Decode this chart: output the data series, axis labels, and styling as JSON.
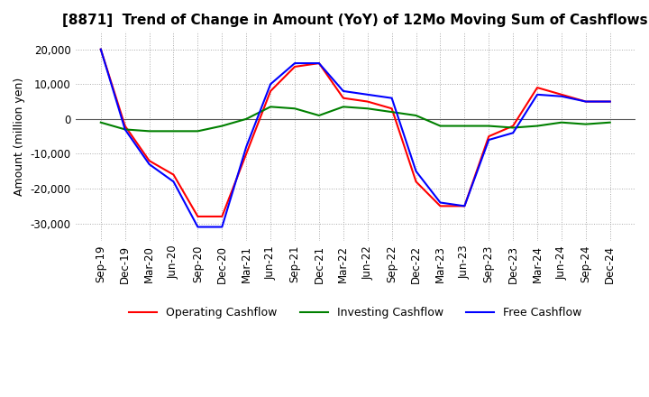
{
  "title": "[8871]  Trend of Change in Amount (YoY) of 12Mo Moving Sum of Cashflows",
  "ylabel": "Amount (million yen)",
  "x_labels": [
    "Sep-19",
    "Dec-19",
    "Mar-20",
    "Jun-20",
    "Sep-20",
    "Dec-20",
    "Mar-21",
    "Jun-21",
    "Sep-21",
    "Dec-21",
    "Mar-22",
    "Jun-22",
    "Sep-22",
    "Dec-22",
    "Mar-23",
    "Jun-23",
    "Sep-23",
    "Dec-23",
    "Mar-24",
    "Jun-24",
    "Sep-24",
    "Dec-24"
  ],
  "operating": [
    20000,
    -2000,
    -12000,
    -16000,
    -28000,
    -28000,
    -10000,
    8000,
    15000,
    16000,
    6000,
    5000,
    3000,
    -18000,
    -25000,
    -25000,
    -5000,
    -2000,
    9000,
    7000,
    5000,
    5000
  ],
  "investing": [
    -1000,
    -3000,
    -3500,
    -3500,
    -3500,
    -2000,
    0,
    3500,
    3000,
    1000,
    3500,
    3000,
    2000,
    1000,
    -2000,
    -2000,
    -2000,
    -2500,
    -2000,
    -1000,
    -1500,
    -1000
  ],
  "free": [
    20000,
    -3000,
    -13000,
    -18000,
    -31000,
    -31000,
    -8000,
    10000,
    16000,
    16000,
    8000,
    7000,
    6000,
    -15000,
    -24000,
    -25000,
    -6000,
    -4000,
    7000,
    6500,
    5000,
    5000
  ],
  "operating_color": "#ff0000",
  "investing_color": "#008000",
  "free_color": "#0000ff",
  "ylim": [
    -35000,
    25000
  ],
  "yticks": [
    -30000,
    -20000,
    -10000,
    0,
    10000,
    20000
  ],
  "background_color": "#ffffff",
  "grid_color": "#aaaaaa",
  "title_fontsize": 11,
  "axis_fontsize": 9,
  "tick_fontsize": 8.5
}
